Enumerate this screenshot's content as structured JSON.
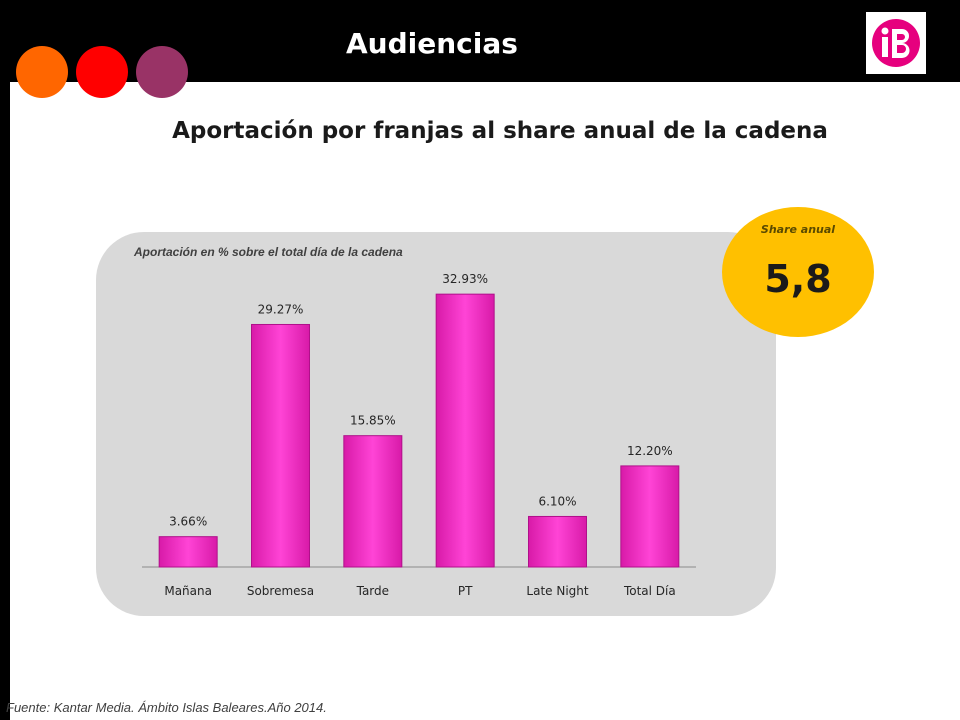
{
  "header": {
    "title": "Audiencias"
  },
  "decor": {
    "dot_colors": [
      "#ff6600",
      "#ff0000",
      "#993366"
    ]
  },
  "logo": {
    "icon": "ib3-logo-icon",
    "color": "#e6007e"
  },
  "subtitle": "Aportación por franjas al share anual de la cadena",
  "share": {
    "label": "Share anual",
    "value": "5,8",
    "color": "#ffc000"
  },
  "chart_data": {
    "type": "bar",
    "title": "Aportación en % sobre el total día de la cadena",
    "categories": [
      "Mañana",
      "Sobremesa",
      "Tarde",
      "PT",
      "Late Night",
      "Total Día"
    ],
    "values": [
      3.66,
      29.27,
      15.85,
      32.93,
      6.1,
      12.2
    ],
    "data_labels": [
      "3.66%",
      "29.27%",
      "15.85%",
      "32.93%",
      "6.10%",
      "12.20%"
    ],
    "bar_color": "#ff33cc",
    "ylim": [
      0,
      35
    ],
    "grid": false,
    "legend": "none"
  },
  "source": "Fuente: Kantar Media. Ámbito Islas Baleares.Año 2014."
}
